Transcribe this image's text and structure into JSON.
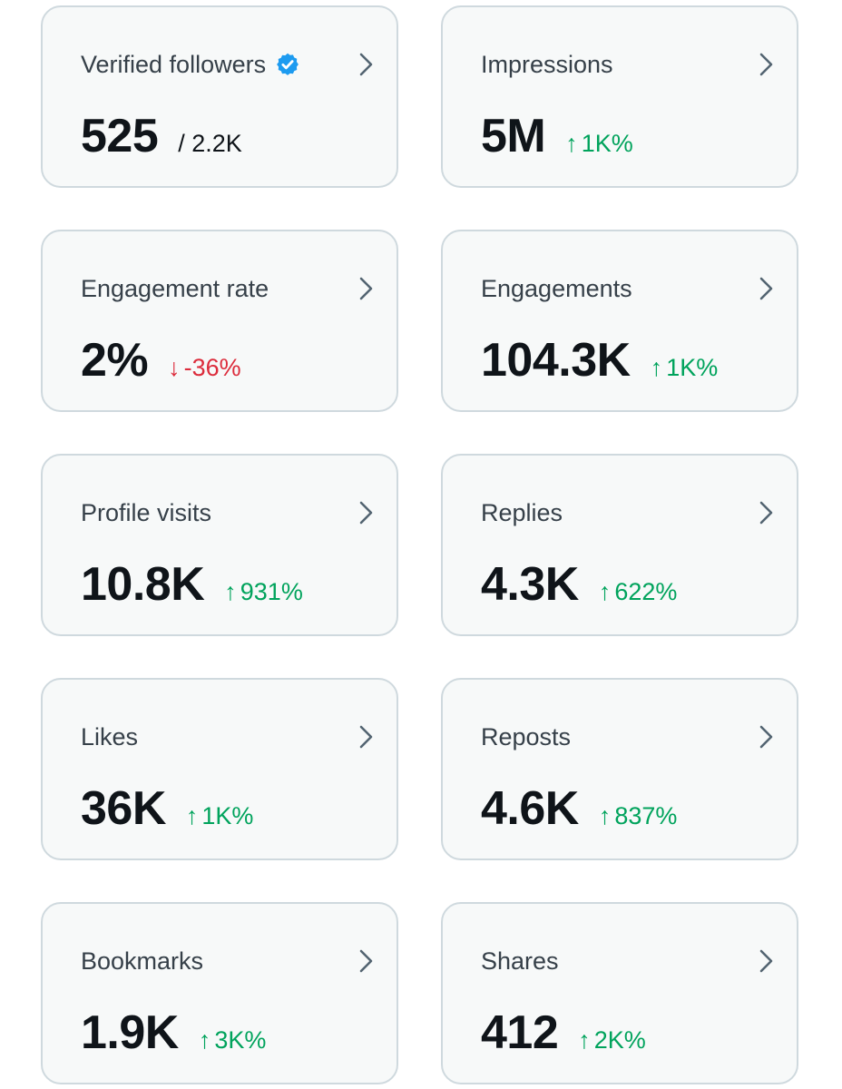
{
  "colors": {
    "card_background": "#f7f9f9",
    "card_border": "#cfd9de",
    "positive": "#00a35c",
    "negative": "#dc2c3c",
    "verified_badge": "#1d9bf0"
  },
  "icons": {
    "chevron": "chevron-right-icon",
    "verified": "verified-badge-icon",
    "up": "arrow-up-icon",
    "down": "arrow-down-icon"
  },
  "cards": [
    {
      "title": "Verified followers",
      "value": "525",
      "sub": "/ 2.2K",
      "arrow": "",
      "change": "",
      "direction": ""
    },
    {
      "title": "Impressions",
      "value": "5M",
      "sub": "",
      "arrow": "↑",
      "change": "1K%",
      "direction": "up"
    },
    {
      "title": "Engagement rate",
      "value": "2%",
      "sub": "",
      "arrow": "↓",
      "change": "-36%",
      "direction": "down"
    },
    {
      "title": "Engagements",
      "value": "104.3K",
      "sub": "",
      "arrow": "↑",
      "change": "1K%",
      "direction": "up"
    },
    {
      "title": "Profile visits",
      "value": "10.8K",
      "sub": "",
      "arrow": "↑",
      "change": "931%",
      "direction": "up"
    },
    {
      "title": "Replies",
      "value": "4.3K",
      "sub": "",
      "arrow": "↑",
      "change": "622%",
      "direction": "up"
    },
    {
      "title": "Likes",
      "value": "36K",
      "sub": "",
      "arrow": "↑",
      "change": "1K%",
      "direction": "up"
    },
    {
      "title": "Reposts",
      "value": "4.6K",
      "sub": "",
      "arrow": "↑",
      "change": "837%",
      "direction": "up"
    },
    {
      "title": "Bookmarks",
      "value": "1.9K",
      "sub": "",
      "arrow": "↑",
      "change": "3K%",
      "direction": "up"
    },
    {
      "title": "Shares",
      "value": "412",
      "sub": "",
      "arrow": "↑",
      "change": "2K%",
      "direction": "up"
    }
  ]
}
